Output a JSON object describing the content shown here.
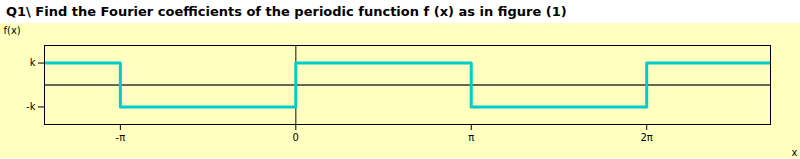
{
  "chart_data": {
    "type": "line",
    "title": "Q1\\ Find the Fourier coefficients of the periodic function f (x) as in figure (1)",
    "x_label": "x",
    "y_label": "f(x)",
    "x": [
      -4.5,
      -3.14159,
      -3.14159,
      0,
      0,
      3.14159,
      3.14159,
      6.28318,
      6.28318,
      8.5
    ],
    "series": [
      {
        "name": "f(x)",
        "color": "#00CCCC",
        "values": [
          1,
          1,
          -1,
          -1,
          1,
          1,
          -1,
          -1,
          1,
          1
        ]
      }
    ],
    "xlim": [
      -4.5,
      8.5
    ],
    "ylim": [
      -1.8,
      1.8
    ],
    "xticks": [
      {
        "value": -3.14159,
        "label": "-π"
      },
      0,
      {
        "value": 3.14159,
        "label": "π"
      },
      {
        "value": 6.28318,
        "label": "2π"
      }
    ],
    "yticks": [
      {
        "value": 1,
        "label": "k"
      },
      {
        "value": -1,
        "label": "-k"
      }
    ],
    "grid": false
  }
}
